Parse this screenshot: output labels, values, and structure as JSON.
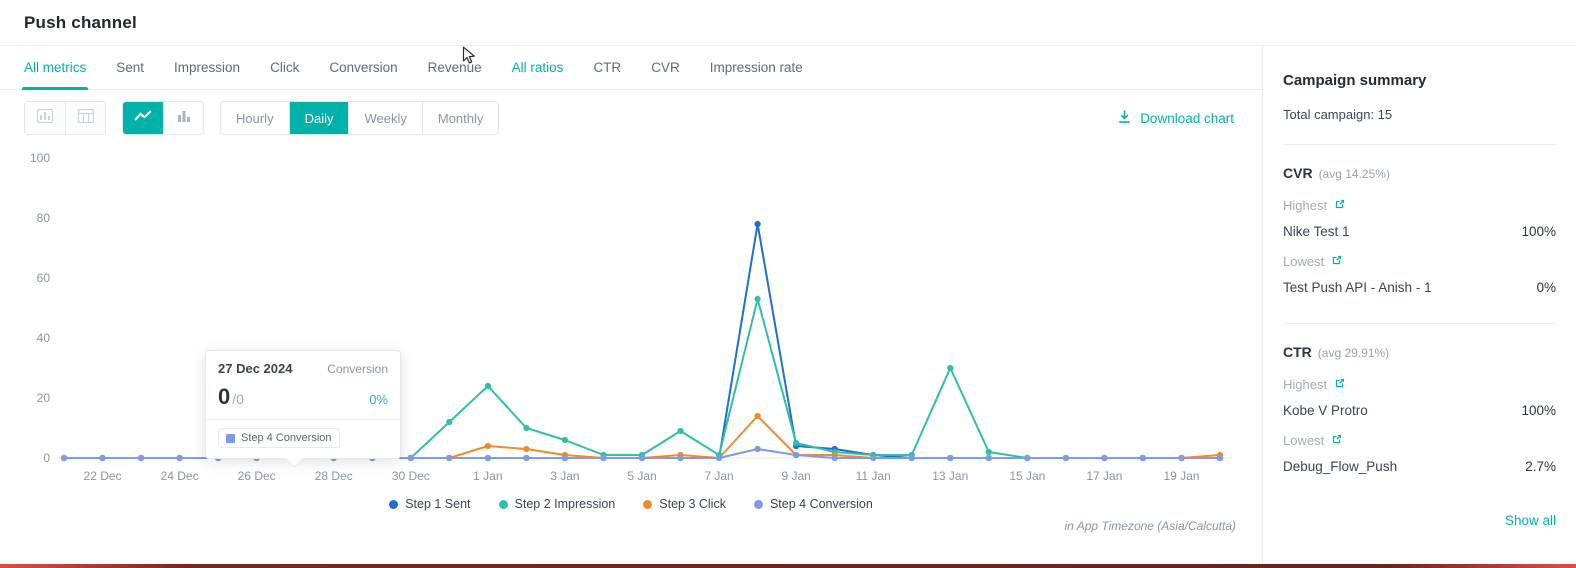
{
  "page_title": "Push channel",
  "colors": {
    "accent": "#00b2a9",
    "sent": "#1f6fd0",
    "impression": "#2fbfa8",
    "click": "#f08a2d",
    "conversion": "#7d9ce8"
  },
  "tabs": [
    {
      "label": "All metrics",
      "active": true
    },
    {
      "label": "Sent"
    },
    {
      "label": "Impression"
    },
    {
      "label": "Click"
    },
    {
      "label": "Conversion"
    },
    {
      "label": "Revenue"
    },
    {
      "label": "All ratios",
      "highlighted": true
    },
    {
      "label": "CTR"
    },
    {
      "label": "CVR"
    },
    {
      "label": "Impression rate"
    }
  ],
  "toolbar": {
    "view_icons": [
      "chart-card-icon",
      "table-icon"
    ],
    "chart_type_active": "line",
    "granularity": [
      {
        "label": "Hourly",
        "active": false
      },
      {
        "label": "Daily",
        "active": true
      },
      {
        "label": "Weekly",
        "active": false
      },
      {
        "label": "Monthly",
        "active": false
      }
    ],
    "download_label": "Download chart"
  },
  "tooltip": {
    "date": "27 Dec 2024",
    "metric": "Conversion",
    "value": "0",
    "total": "/0",
    "percent": "0%",
    "series": "Step 4 Conversion"
  },
  "timezone_note": "in App Timezone (Asia/Calcutta)",
  "chart_data": {
    "type": "line",
    "x": [
      "21 Dec",
      "22 Dec",
      "23 Dec",
      "24 Dec",
      "25 Dec",
      "26 Dec",
      "27 Dec",
      "28 Dec",
      "29 Dec",
      "30 Dec",
      "31 Dec",
      "1 Jan",
      "2 Jan",
      "3 Jan",
      "4 Jan",
      "5 Jan",
      "6 Jan",
      "7 Jan",
      "8 Jan",
      "9 Jan",
      "10 Jan",
      "11 Jan",
      "12 Jan",
      "13 Jan",
      "14 Jan",
      "15 Jan",
      "16 Jan",
      "17 Jan",
      "18 Jan",
      "19 Jan",
      "20 Jan"
    ],
    "x_tick_labels": [
      "22 Dec",
      "24 Dec",
      "26 Dec",
      "28 Dec",
      "30 Dec",
      "1 Jan",
      "3 Jan",
      "5 Jan",
      "7 Jan",
      "9 Jan",
      "11 Jan",
      "13 Jan",
      "15 Jan",
      "17 Jan",
      "19 Jan"
    ],
    "ylim": [
      0,
      100
    ],
    "y_ticks": [
      0,
      20,
      40,
      60,
      80,
      100
    ],
    "grid": false,
    "legend_position": "bottom",
    "series": [
      {
        "name": "Step 1 Sent",
        "color": "#1f6fd0",
        "values": [
          0,
          0,
          0,
          0,
          0,
          0,
          0,
          0,
          0,
          0,
          0,
          0,
          0,
          0,
          0,
          0,
          0,
          0,
          78,
          4,
          3,
          1,
          0,
          0,
          0,
          0,
          0,
          0,
          0,
          0,
          0
        ]
      },
      {
        "name": "Step 2 Impression",
        "color": "#2fbfa8",
        "values": [
          0,
          0,
          0,
          0,
          0,
          0,
          0,
          0,
          0,
          0,
          12,
          24,
          10,
          6,
          1,
          1,
          9,
          1,
          53,
          5,
          2,
          1,
          1,
          30,
          2,
          0,
          0,
          0,
          0,
          0,
          0
        ]
      },
      {
        "name": "Step 3 Click",
        "color": "#f08a2d",
        "values": [
          0,
          0,
          0,
          0,
          0,
          0,
          0,
          0,
          0,
          0,
          0,
          4,
          3,
          1,
          0,
          0,
          1,
          0,
          14,
          1,
          1,
          0,
          0,
          0,
          0,
          0,
          0,
          0,
          0,
          0,
          1
        ]
      },
      {
        "name": "Step 4 Conversion",
        "color": "#7d9ce8",
        "values": [
          0,
          0,
          0,
          0,
          0,
          0,
          0,
          0,
          0,
          0,
          0,
          0,
          0,
          0,
          0,
          0,
          0,
          0,
          3,
          1,
          0,
          0,
          0,
          0,
          0,
          0,
          0,
          0,
          0,
          0,
          0
        ]
      }
    ]
  },
  "sidebar": {
    "title": "Campaign summary",
    "total_label": "Total campaign: 15",
    "sections": [
      {
        "metric": "CVR",
        "avg": "(avg 14.25%)",
        "highest_label": "Highest",
        "highest_name": "Nike Test 1",
        "highest_value": "100%",
        "lowest_label": "Lowest",
        "lowest_name": "Test Push API - Anish - 1",
        "lowest_value": "0%"
      },
      {
        "metric": "CTR",
        "avg": "(avg 29.91%)",
        "highest_label": "Highest",
        "highest_name": "Kobe V Protro",
        "highest_value": "100%",
        "lowest_label": "Lowest",
        "lowest_name": "Debug_Flow_Push",
        "lowest_value": "2.7%"
      }
    ],
    "show_all_label": "Show all"
  }
}
